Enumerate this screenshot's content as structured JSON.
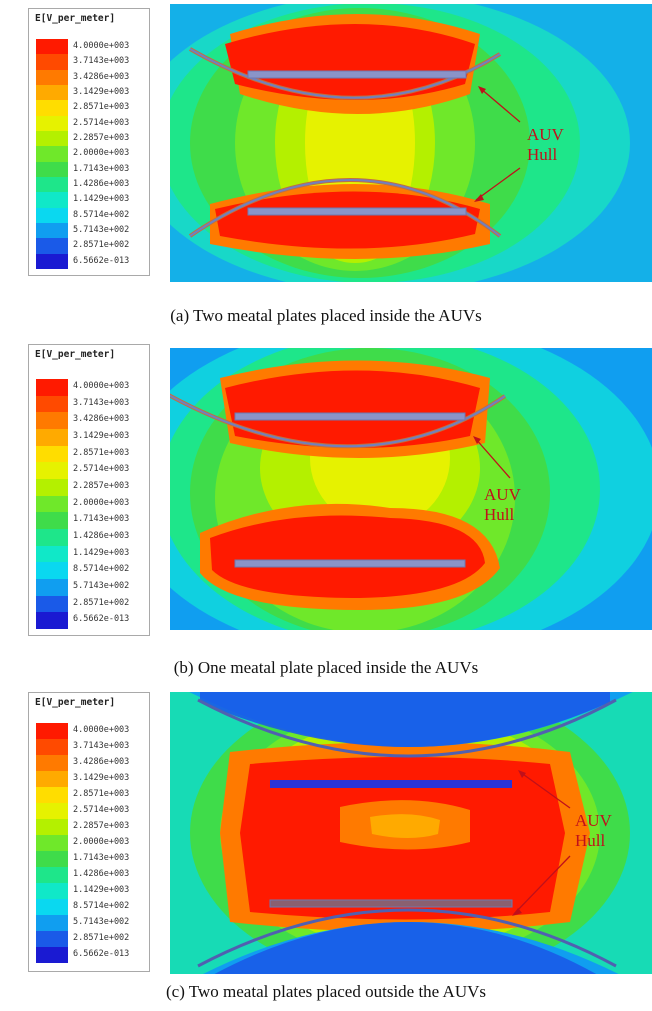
{
  "legend": {
    "title": "E[V_per_meter]",
    "levels": [
      {
        "value": "4.0000e+003",
        "color": "#ff1a00"
      },
      {
        "value": "3.7143e+003",
        "color": "#ff4a00"
      },
      {
        "value": "3.4286e+003",
        "color": "#ff7a00"
      },
      {
        "value": "3.1429e+003",
        "color": "#ffaa00"
      },
      {
        "value": "2.8571e+003",
        "color": "#ffdd00"
      },
      {
        "value": "2.5714e+003",
        "color": "#e6f200"
      },
      {
        "value": "2.2857e+003",
        "color": "#b4f000"
      },
      {
        "value": "2.0000e+003",
        "color": "#6fe82a"
      },
      {
        "value": "1.7143e+003",
        "color": "#3fdc4a"
      },
      {
        "value": "1.4286e+003",
        "color": "#1ee68a"
      },
      {
        "value": "1.1429e+003",
        "color": "#10e8c8"
      },
      {
        "value": "8.5714e+002",
        "color": "#0ad8f0"
      },
      {
        "value": "5.7143e+002",
        "color": "#109ef0"
      },
      {
        "value": "2.8571e+002",
        "color": "#1a5ae8"
      },
      {
        "value": "6.5662e-013",
        "color": "#1a1ad2"
      }
    ]
  },
  "annotation": {
    "line1": "AUV",
    "line2": "Hull",
    "color": "#c0101a"
  },
  "panels": [
    {
      "id": "a",
      "caption": "(a) Two meatal plates placed inside the AUVs"
    },
    {
      "id": "b",
      "caption": "(b) One meatal plate placed inside the AUVs"
    },
    {
      "id": "c",
      "caption": "(c) Two meatal plates placed outside the AUVs"
    }
  ]
}
